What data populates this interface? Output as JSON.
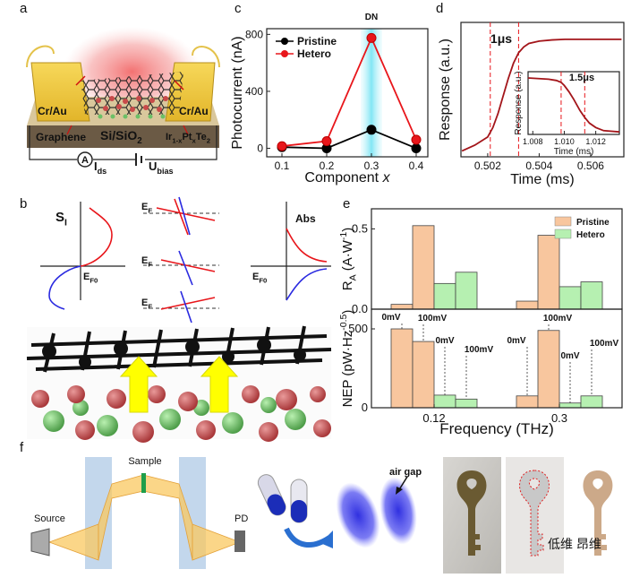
{
  "figure": {
    "panel_letters": [
      "a",
      "b",
      "c",
      "d",
      "e",
      "f"
    ],
    "a": {
      "cr_au_left": "Cr/Au",
      "cr_au_right": "Cr/Au",
      "graphene": "Graphene",
      "substrate": [
        {
          "text": "Si/SiO"
        },
        {
          "text": "2",
          "shift": "sub"
        }
      ],
      "channel": [
        {
          "text": "Ir"
        },
        {
          "text": "1-x",
          "shift": "sub"
        },
        {
          "text": "Pt"
        },
        {
          "text": "x",
          "shift": "sub"
        },
        {
          "text": "Te"
        },
        {
          "text": "2",
          "shift": "sub"
        }
      ],
      "ammeter": "A",
      "current": [
        {
          "text": "I"
        },
        {
          "text": "ds",
          "shift": "sub"
        }
      ],
      "bias": [
        {
          "text": "U"
        },
        {
          "text": "bias",
          "shift": "sub"
        }
      ]
    },
    "b": {
      "si": [
        {
          "text": "S"
        },
        {
          "text": "I",
          "shift": "sub"
        }
      ],
      "ef0_left": [
        {
          "text": "E"
        },
        {
          "text": "F0",
          "shift": "sub"
        }
      ],
      "ef": [
        [
          {
            "text": "E"
          },
          {
            "text": "F",
            "shift": "sub"
          }
        ],
        [
          {
            "text": "E"
          },
          {
            "text": "F",
            "shift": "sub"
          }
        ],
        [
          {
            "text": "E"
          },
          {
            "text": "F",
            "shift": "sub"
          }
        ]
      ],
      "abs": "Abs",
      "ef0_right": [
        {
          "text": "E"
        },
        {
          "text": "F0",
          "shift": "sub"
        }
      ]
    },
    "f": {
      "sample": "Sample",
      "source": "Source",
      "pd": "PD",
      "air_gap": "air gap",
      "watermark": "低维 昂维"
    }
  },
  "chart_data": [
    {
      "type": "line",
      "x": [
        0.1,
        0.2,
        0.3,
        0.4
      ],
      "xlim": [
        0.066,
        0.426
      ],
      "xticks": [
        0.1,
        0.2,
        0.3,
        0.4
      ],
      "ylim": [
        -60,
        840
      ],
      "yticks": [
        0,
        400,
        800
      ],
      "xlabel": [
        {
          "text": "Component "
        },
        {
          "text": "x",
          "shift": "italic"
        }
      ],
      "ylabel": "Photocurrent (nA)",
      "annotation": "DN",
      "highlight_x": 0.3,
      "legend": "upper left",
      "series": [
        {
          "name": "Pristine",
          "color": "#000000",
          "marker": true,
          "values": [
            8,
            0,
            130,
            0
          ]
        },
        {
          "name": "Hetero",
          "color": "#e8161b",
          "marker": true,
          "values": [
            15,
            50,
            775,
            60
          ]
        }
      ]
    },
    {
      "type": "line",
      "x": [
        0.501,
        0.5015,
        0.502,
        0.5022,
        0.5024,
        0.5026,
        0.5028,
        0.503,
        0.5032,
        0.5034,
        0.5036,
        0.504,
        0.5045,
        0.505,
        0.5055,
        0.506,
        0.5065,
        0.5072
      ],
      "xlim": [
        0.50096,
        0.50729
      ],
      "xticks": [
        0.502,
        0.504,
        0.506
      ],
      "ylim": [
        -0.05,
        1.1
      ],
      "xlabel": "Time (ms)",
      "ylabel": "Response (a.u.)",
      "annotation": "1μs",
      "marker_lines": [
        0.5021,
        0.5032
      ],
      "series": [
        {
          "color": "#a3151a",
          "values": [
            0.0,
            0.05,
            0.12,
            0.2,
            0.32,
            0.47,
            0.62,
            0.75,
            0.84,
            0.89,
            0.92,
            0.94,
            0.95,
            0.955,
            0.955,
            0.955,
            0.955,
            0.955
          ]
        }
      ]
    },
    {
      "type": "line",
      "x": [
        1.0077,
        1.009,
        1.0095,
        1.0098,
        1.01,
        1.0103,
        1.0106,
        1.011,
        1.0113,
        1.0116,
        1.012,
        1.0125,
        1.0135
      ],
      "xlim": [
        1.0077,
        1.0135
      ],
      "xticks": [
        1.008,
        {
          "value": 1.01,
          "label": "1.010"
        },
        1.012
      ],
      "ylim": [
        0,
        1
      ],
      "xlabel": "Time (ms)",
      "ylabel": "Response (a.u.)",
      "annotation": "1.5μs",
      "marker_lines": [
        1.0098,
        1.0113
      ],
      "series": [
        {
          "color": "#a3151a",
          "values": [
            0.9,
            0.88,
            0.86,
            0.83,
            0.78,
            0.68,
            0.56,
            0.38,
            0.27,
            0.18,
            0.11,
            0.06,
            0.04
          ]
        }
      ]
    },
    {
      "type": "bar",
      "categories": [
        null,
        null
      ],
      "ylim": [
        0,
        0.625
      ],
      "yticks": [
        {
          "value": 0,
          "label": "0.0"
        },
        0.5
      ],
      "ylabel": [
        {
          "text": "R"
        },
        {
          "text": "A",
          "shift": "sub"
        },
        {
          "text": " (A·W"
        },
        {
          "text": "-1",
          "shift": "sup"
        },
        {
          "text": ")"
        }
      ],
      "legend": "upper right",
      "series": [
        {
          "name": "Pristine",
          "color": "#f8c69e",
          "values": [
            0.03,
            0.05
          ]
        },
        {
          "color": "#f8c69e",
          "values": [
            0.52,
            0.46
          ]
        },
        {
          "name": "Hetero",
          "color": "#b6f0b1",
          "values": [
            0.16,
            0.14
          ]
        },
        {
          "color": "#b6f0b1",
          "values": [
            0.23,
            0.17
          ]
        }
      ]
    },
    {
      "type": "bar",
      "categories": [
        "0.12",
        "0.3"
      ],
      "ylim": [
        0,
        625
      ],
      "yticks": [
        0,
        500
      ],
      "xlabel": "Frequency (THz)",
      "ylabel": [
        {
          "text": "NEP (pW·Hz"
        },
        {
          "text": "-0.5",
          "shift": "sup"
        },
        {
          "text": ")"
        }
      ],
      "series": [
        {
          "color": "#f8c69e",
          "values": [
            500,
            75
          ],
          "labels": [
            "0mV",
            "0mV"
          ]
        },
        {
          "color": "#f8c69e",
          "values": [
            420,
            490
          ],
          "labels": [
            "100mV",
            "100mV"
          ]
        },
        {
          "color": "#b6f0b1",
          "values": [
            80,
            30
          ],
          "labels": [
            "0mV",
            "0mV"
          ]
        },
        {
          "color": "#b6f0b1",
          "values": [
            55,
            75
          ],
          "labels": [
            "100mV",
            "100mV"
          ]
        }
      ]
    }
  ]
}
